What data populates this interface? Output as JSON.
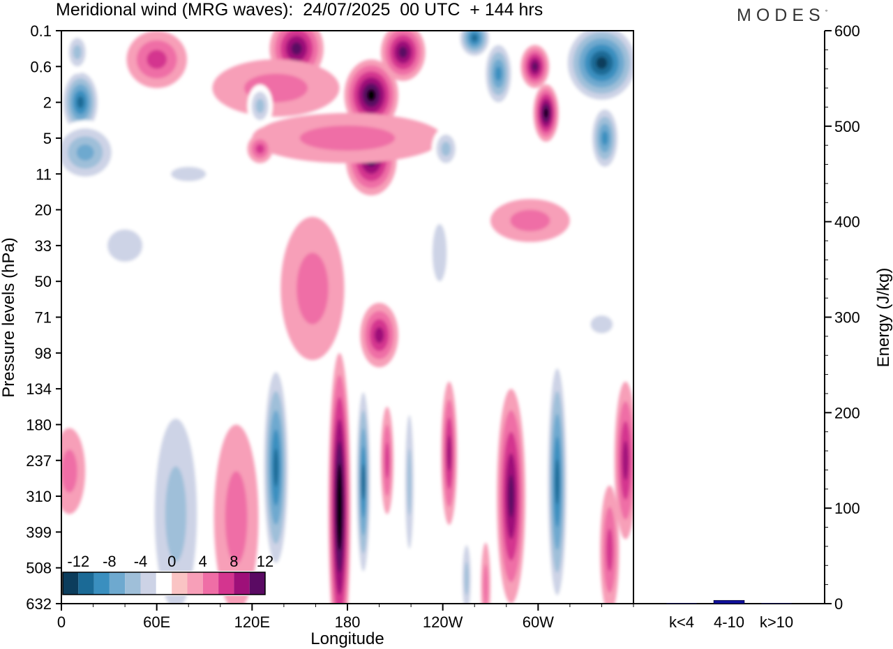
{
  "header": {
    "title": "Meridional wind (MRG waves):  24/07/2025  00 UTC  + 144 hrs",
    "brand": "MODES",
    "brand_mark": "°"
  },
  "chart_data": [
    {
      "type": "heatmap",
      "title": "Meridional wind (MRG waves):  24/07/2025  00 UTC  + 144 hrs",
      "xlabel": "Longitude",
      "ylabel": "Pressure levels (hPa)",
      "x_ticks": [
        "0",
        "60E",
        "120E",
        "180",
        "120W",
        "60W"
      ],
      "x_tick_degrees": [
        0,
        60,
        120,
        180,
        240,
        300
      ],
      "xlim": [
        0,
        360
      ],
      "y_ticks": [
        "0.1",
        "0.6",
        "2",
        "5",
        "11",
        "20",
        "33",
        "50",
        "71",
        "98",
        "134",
        "180",
        "237",
        "310",
        "399",
        "508",
        "632"
      ],
      "colorbar": {
        "labels": [
          "-12",
          "-8",
          "-4",
          "0",
          "4",
          "8",
          "12"
        ],
        "levels": [
          -14,
          -12,
          -10,
          -8,
          -6,
          -4,
          -2,
          2,
          4,
          6,
          8,
          10,
          12,
          14
        ],
        "colors": [
          "#0c3d5c",
          "#1b6a96",
          "#3a8fbf",
          "#6ea9cf",
          "#9fbfd9",
          "#cdd3e6",
          "#ffffff",
          "#fac4c4",
          "#f79fb8",
          "#ef6ea6",
          "#d4358f",
          "#9e1079",
          "#5a0a63"
        ]
      },
      "features": [
        {
          "lon": 175,
          "level": 13.3,
          "value": 14,
          "lon_halfwidth": 7,
          "level_halfspan": 4.3
        },
        {
          "lon": 190,
          "level": 12.6,
          "value": -12,
          "lon_halfwidth": 5,
          "level_halfspan": 3.0
        },
        {
          "lon": 135,
          "level": 12.2,
          "value": -12,
          "lon_halfwidth": 9,
          "level_halfspan": 3.2
        },
        {
          "lon": 312,
          "level": 12.6,
          "value": -12,
          "lon_halfwidth": 7,
          "level_halfspan": 3.8
        },
        {
          "lon": 283,
          "level": 13.0,
          "value": 10,
          "lon_halfwidth": 9,
          "level_halfspan": 3.0
        },
        {
          "lon": 244,
          "level": 11.8,
          "value": 8,
          "lon_halfwidth": 5,
          "level_halfspan": 2.0
        },
        {
          "lon": 219,
          "level": 12.6,
          "value": -6,
          "lon_halfwidth": 4,
          "level_halfspan": 2.8
        },
        {
          "lon": 205,
          "level": 12.0,
          "value": 6,
          "lon_halfwidth": 4,
          "level_halfspan": 1.5
        },
        {
          "lon": 355,
          "level": 12.0,
          "value": 8,
          "lon_halfwidth": 7,
          "level_halfspan": 2.2
        },
        {
          "lon": 345,
          "level": 14.5,
          "value": 6,
          "lon_halfwidth": 6,
          "level_halfspan": 1.8
        },
        {
          "lon": 72,
          "level": 13.5,
          "value": -6,
          "lon_halfwidth": 20,
          "level_halfspan": 4.0
        },
        {
          "lon": 110,
          "level": 13.6,
          "value": 4,
          "lon_halfwidth": 14,
          "level_halfspan": 2.6
        },
        {
          "lon": 255,
          "level": 15.3,
          "value": -6,
          "lon_halfwidth": 4,
          "level_halfspan": 1.4
        },
        {
          "lon": 267,
          "level": 15.5,
          "value": 4,
          "lon_halfwidth": 3,
          "level_halfspan": 1.2
        },
        {
          "lon": 5,
          "level": 12.3,
          "value": 4,
          "lon_halfwidth": 10,
          "level_halfspan": 1.2
        },
        {
          "lon": 200,
          "level": 8.5,
          "value": 8,
          "lon_halfwidth": 12,
          "level_halfspan": 0.9
        },
        {
          "lon": 158,
          "level": 7.2,
          "value": 4,
          "lon_halfwidth": 20,
          "level_halfspan": 2.0
        },
        {
          "lon": 40,
          "level": 6.0,
          "value": -4,
          "lon_halfwidth": 22,
          "level_halfspan": 0.9
        },
        {
          "lon": 238,
          "level": 6.2,
          "value": -4,
          "lon_halfwidth": 9,
          "level_halfspan": 1.6
        },
        {
          "lon": 295,
          "level": 5.3,
          "value": 4,
          "lon_halfwidth": 25,
          "level_halfspan": 0.6
        },
        {
          "lon": 340,
          "level": 8.2,
          "value": -4,
          "lon_halfwidth": 14,
          "level_halfspan": 0.5
        },
        {
          "lon": 195,
          "level": 3.6,
          "value": 10,
          "lon_halfwidth": 16,
          "level_halfspan": 1.0
        },
        {
          "lon": 195,
          "level": 1.8,
          "value": 12,
          "lon_halfwidth": 17,
          "level_halfspan": 1.0
        },
        {
          "lon": 148,
          "level": 0.5,
          "value": 10,
          "lon_halfwidth": 17,
          "level_halfspan": 0.9
        },
        {
          "lon": 215,
          "level": 0.6,
          "value": 10,
          "lon_halfwidth": 14,
          "level_halfspan": 0.8
        },
        {
          "lon": 60,
          "level": 0.8,
          "value": 6,
          "lon_halfwidth": 19,
          "level_halfspan": 0.8
        },
        {
          "lon": 135,
          "level": 1.6,
          "value": 4,
          "lon_halfwidth": 40,
          "level_halfspan": 0.8
        },
        {
          "lon": 180,
          "level": 3.0,
          "value": 4,
          "lon_halfwidth": 60,
          "level_halfspan": 0.7
        },
        {
          "lon": 260,
          "level": 0.2,
          "value": -12,
          "lon_halfwidth": 11,
          "level_halfspan": 0.6
        },
        {
          "lon": 275,
          "level": 1.2,
          "value": -10,
          "lon_halfwidth": 10,
          "level_halfspan": 1.0
        },
        {
          "lon": 298,
          "level": 1.0,
          "value": 10,
          "lon_halfwidth": 9,
          "level_halfspan": 0.6
        },
        {
          "lon": 305,
          "level": 2.3,
          "value": 12,
          "lon_halfwidth": 8,
          "level_halfspan": 0.8
        },
        {
          "lon": 340,
          "level": 0.9,
          "value": -14,
          "lon_halfwidth": 25,
          "level_halfspan": 1.2
        },
        {
          "lon": 342,
          "level": 3.0,
          "value": -10,
          "lon_halfwidth": 10,
          "level_halfspan": 1.0
        },
        {
          "lon": 12,
          "level": 2.0,
          "value": -12,
          "lon_halfwidth": 13,
          "level_halfspan": 1.0
        },
        {
          "lon": 15,
          "level": 3.4,
          "value": -8,
          "lon_halfwidth": 22,
          "level_halfspan": 0.9
        },
        {
          "lon": 10,
          "level": 0.6,
          "value": -6,
          "lon_halfwidth": 8,
          "level_halfspan": 0.6
        },
        {
          "lon": 80,
          "level": 4.0,
          "value": -4,
          "lon_halfwidth": 22,
          "level_halfspan": 0.4
        },
        {
          "lon": 125,
          "level": 2.1,
          "value": -6,
          "lon_halfwidth": 8,
          "level_halfspan": 0.6
        },
        {
          "lon": 242,
          "level": 3.3,
          "value": -6,
          "lon_halfwidth": 9,
          "level_halfspan": 0.6
        },
        {
          "lon": 125,
          "level": 3.3,
          "value": 6,
          "lon_halfwidth": 8,
          "level_halfspan": 0.4
        }
      ]
    },
    {
      "type": "bar",
      "categories": [
        "k<4",
        "4-10",
        "k>10"
      ],
      "values": [
        0.5,
        3.5,
        0.5
      ],
      "ylabel": "Energy (J/kg)",
      "ylim": [
        0,
        600
      ],
      "y_ticks": [
        "0",
        "100",
        "200",
        "300",
        "400",
        "500",
        "600"
      ],
      "bar_color": "#10109a"
    }
  ]
}
